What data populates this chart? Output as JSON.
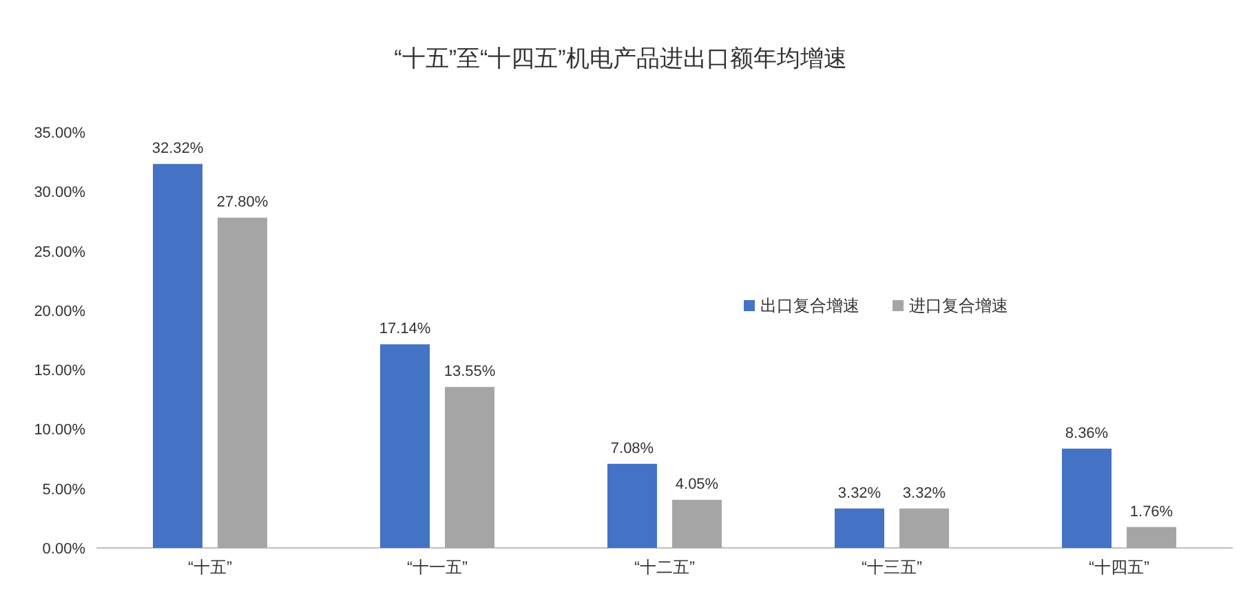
{
  "chart_data": {
    "type": "bar",
    "title": "“十五”至“十四五”机电产品进出口额年均增速",
    "categories": [
      "“十五”",
      "“十一五”",
      "“十二五”",
      "“十三五”",
      "“十四五”"
    ],
    "series": [
      {
        "name": "出口复合增速",
        "color": "#4472c4",
        "values": [
          32.32,
          17.14,
          7.08,
          3.32,
          8.36
        ],
        "value_labels": [
          "32.32%",
          "17.14%",
          "7.08%",
          "3.32%",
          "8.36%"
        ]
      },
      {
        "name": "进口复合增速",
        "color": "#a5a5a5",
        "values": [
          27.8,
          13.55,
          4.05,
          3.32,
          1.76
        ],
        "value_labels": [
          "27.80%",
          "13.55%",
          "4.05%",
          "3.32%",
          "1.76%"
        ]
      }
    ],
    "ylim": [
      0,
      35
    ],
    "yticks": [
      {
        "value": 0,
        "label": "0.00%"
      },
      {
        "value": 5,
        "label": "5.00%"
      },
      {
        "value": 10,
        "label": "10.00%"
      },
      {
        "value": 15,
        "label": "15.00%"
      },
      {
        "value": 20,
        "label": "20.00%"
      },
      {
        "value": 25,
        "label": "25.00%"
      },
      {
        "value": 30,
        "label": "30.00%"
      },
      {
        "value": 35,
        "label": "35.00%"
      }
    ],
    "grid": false,
    "legend": "right"
  }
}
